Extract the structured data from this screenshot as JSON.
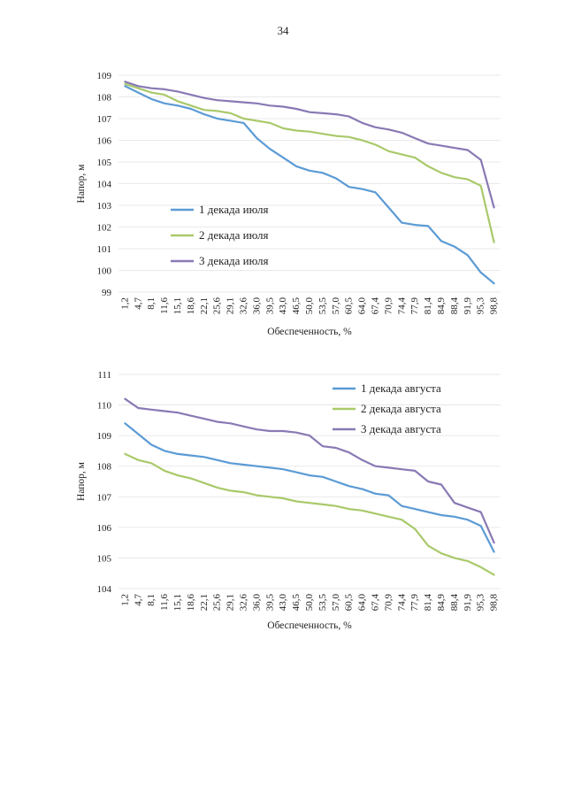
{
  "page": {
    "number": "34"
  },
  "palette": {
    "blue": "#5b9bd5",
    "green": "#a9c96a",
    "purple": "#8979b4"
  },
  "chart_data": [
    {
      "type": "line",
      "xlabel": "Обеспеченность, %",
      "ylabel": "Напор, м",
      "ylim": [
        99,
        109
      ],
      "yticks": [
        99,
        100,
        101,
        102,
        103,
        104,
        105,
        106,
        107,
        108,
        109
      ],
      "xtick_labels": [
        "1,2",
        "4,7",
        "8,1",
        "11,6",
        "15,1",
        "18,6",
        "22,1",
        "25,6",
        "29,1",
        "32,6",
        "36,0",
        "39,5",
        "43,0",
        "46,5",
        "50,0",
        "53,5",
        "57,0",
        "60,5",
        "64,0",
        "67,4",
        "70,9",
        "74,4",
        "77,9",
        "81,4",
        "84,9",
        "88,4",
        "91,9",
        "95,3",
        "98,8"
      ],
      "x": [
        1.2,
        4.7,
        8.1,
        11.6,
        15.1,
        18.6,
        22.1,
        25.6,
        29.1,
        32.6,
        36.0,
        39.5,
        43.0,
        46.5,
        50.0,
        53.5,
        57.0,
        60.5,
        64.0,
        67.4,
        70.9,
        74.4,
        77.9,
        81.4,
        84.9,
        88.4,
        91.9,
        95.3,
        98.8
      ],
      "legend_position": "left-lower",
      "series": [
        {
          "name": "1 декада июля",
          "color": "#5b9bd5",
          "values": [
            108.5,
            108.2,
            107.9,
            107.7,
            107.6,
            107.45,
            107.2,
            107.0,
            106.9,
            106.8,
            106.1,
            105.6,
            105.2,
            104.8,
            104.6,
            104.5,
            104.25,
            103.85,
            103.75,
            103.6,
            102.9,
            102.2,
            102.1,
            102.05,
            101.35,
            101.1,
            100.7,
            99.9,
            99.4
          ]
        },
        {
          "name": "2 декада июля",
          "color": "#a9c96a",
          "values": [
            108.6,
            108.4,
            108.2,
            108.1,
            107.8,
            107.6,
            107.4,
            107.35,
            107.25,
            107.0,
            106.9,
            106.8,
            106.55,
            106.45,
            106.4,
            106.3,
            106.2,
            106.15,
            106.0,
            105.8,
            105.5,
            105.35,
            105.2,
            104.8,
            104.5,
            104.3,
            104.2,
            103.9,
            101.3
          ]
        },
        {
          "name": "3 декада июля",
          "color": "#8979b4",
          "values": [
            108.7,
            108.5,
            108.4,
            108.35,
            108.25,
            108.1,
            107.95,
            107.85,
            107.8,
            107.75,
            107.7,
            107.6,
            107.55,
            107.45,
            107.3,
            107.25,
            107.2,
            107.1,
            106.8,
            106.6,
            106.5,
            106.35,
            106.1,
            105.85,
            105.75,
            105.65,
            105.55,
            105.1,
            102.9
          ]
        }
      ]
    },
    {
      "type": "line",
      "xlabel": "Обеспеченность, %",
      "ylabel": "Напор, м",
      "ylim": [
        104,
        111
      ],
      "yticks": [
        104,
        105,
        106,
        107,
        108,
        109,
        110,
        111
      ],
      "xtick_labels": [
        "1,2",
        "4,7",
        "8,1",
        "11,6",
        "15,1",
        "18,6",
        "22,1",
        "25,6",
        "29,1",
        "32,6",
        "36,0",
        "39,5",
        "43,0",
        "46,5",
        "50,0",
        "53,5",
        "57,0",
        "60,5",
        "64,0",
        "67,4",
        "70,9",
        "74,4",
        "77,9",
        "81,4",
        "84,9",
        "88,4",
        "91,9",
        "95,3",
        "98,8"
      ],
      "x": [
        1.2,
        4.7,
        8.1,
        11.6,
        15.1,
        18.6,
        22.1,
        25.6,
        29.1,
        32.6,
        36.0,
        39.5,
        43.0,
        46.5,
        50.0,
        53.5,
        57.0,
        60.5,
        64.0,
        67.4,
        70.9,
        74.4,
        77.9,
        81.4,
        84.9,
        88.4,
        91.9,
        95.3,
        98.8
      ],
      "legend_position": "top-right",
      "series": [
        {
          "name": "1 декада августа",
          "color": "#5b9bd5",
          "values": [
            109.4,
            109.05,
            108.7,
            108.5,
            108.4,
            108.35,
            108.3,
            108.2,
            108.1,
            108.05,
            108.0,
            107.95,
            107.9,
            107.8,
            107.7,
            107.65,
            107.5,
            107.35,
            107.25,
            107.1,
            107.05,
            106.7,
            106.6,
            106.5,
            106.4,
            106.35,
            106.25,
            106.05,
            105.2
          ]
        },
        {
          "name": "2 декада августа",
          "color": "#a9c96a",
          "values": [
            108.4,
            108.2,
            108.1,
            107.85,
            107.7,
            107.6,
            107.45,
            107.3,
            107.2,
            107.15,
            107.05,
            107.0,
            106.95,
            106.85,
            106.8,
            106.75,
            106.7,
            106.6,
            106.55,
            106.45,
            106.35,
            106.25,
            105.95,
            105.4,
            105.15,
            105.0,
            104.9,
            104.7,
            104.45
          ]
        },
        {
          "name": "3 декада августа",
          "color": "#8979b4",
          "values": [
            110.2,
            109.9,
            109.85,
            109.8,
            109.75,
            109.65,
            109.55,
            109.45,
            109.4,
            109.3,
            109.2,
            109.15,
            109.15,
            109.1,
            109.0,
            108.65,
            108.6,
            108.45,
            108.2,
            108.0,
            107.95,
            107.9,
            107.85,
            107.5,
            107.4,
            106.8,
            106.65,
            106.5,
            105.5
          ]
        }
      ]
    }
  ]
}
